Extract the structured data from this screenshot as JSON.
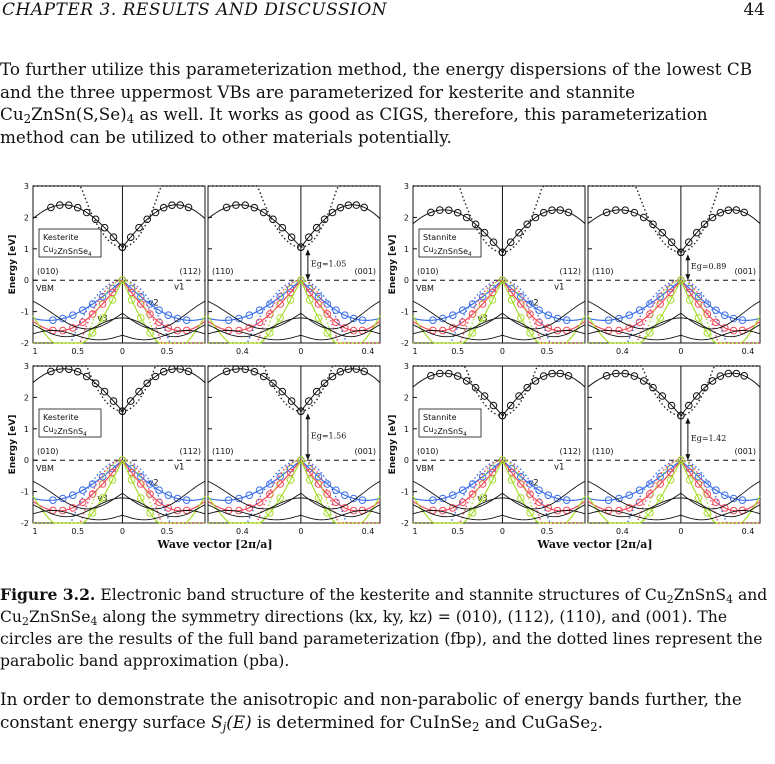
{
  "header": {
    "chapter": "CHAPTER 3.  RESULTS AND DISCUSSION",
    "page": "44"
  },
  "paragraph1": {
    "part1": "To further utilize this parameterization method, the energy dispersions of the lowest CB and the three uppermost VBs are parameterized for kesterite and stannite Cu",
    "part2": "ZnSn(S,Se)",
    "part3": " as well.  It works as good as CIGS, therefore, this parameterization method can be utilized to other materials potentially.",
    "sub1": "2",
    "sub2": "4"
  },
  "figure": {
    "panels": [
      {
        "structure": "Kesterite",
        "formula": "Cu2ZnSnSe4",
        "eg": "Eg=1.05"
      },
      {
        "structure": "Stannite",
        "formula": "Cu2ZnSnSe4",
        "eg": "Eg=0.89"
      },
      {
        "structure": "Kesterite",
        "formula": "Cu2ZnSnS4",
        "eg": "Eg=1.56"
      },
      {
        "structure": "Stannite",
        "formula": "Cu2ZnSnS4",
        "eg": "Eg=1.42"
      }
    ],
    "ylabel": "Energy [eV]",
    "xlabel": "Wave vector [2π/a]",
    "directions_left": [
      "(010)",
      "(112)"
    ],
    "directions_right": [
      "(110)",
      "(001)"
    ],
    "vbm": "VBM",
    "band_labels": [
      "v1",
      "v2",
      "v3"
    ],
    "yticks": [
      "3",
      "2",
      "1",
      "0",
      "-1",
      "-2"
    ],
    "xticks_left": [
      "1",
      "0.5",
      "0",
      "0.5"
    ],
    "xticks_right": [
      "0.4",
      "0",
      "0.4"
    ]
  },
  "caption": {
    "label": "Figure 3.2.",
    "text1": " Electronic band structure of the kesterite and stannite structures of Cu",
    "text2": "ZnSnS",
    "text3": " and Cu",
    "text4": "ZnSnSe",
    "text5": " along the symmetry directions (kx, ky, kz) = (010), (112), (110), and (001).  The circles are the results of the full band parameterization (fbp), and the dotted lines represent the parabolic band approximation (pba).",
    "sub2": "2",
    "sub4": "4"
  },
  "paragraph2": {
    "part1": "In order to demonstrate the anisotropic and non-parabolic of energy bands further, the constant energy surface ",
    "symbol": "S",
    "symbol_sub": "j",
    "symbol_arg": "(E)",
    "part2": " is determined for CuInSe",
    "part3": " and CuGaSe",
    "part4": ".",
    "sub2": "2"
  },
  "colors": {
    "blue": "#3b6fe8",
    "red": "#ef4a5a",
    "green": "#a7dd2c",
    "black": "#111111"
  }
}
